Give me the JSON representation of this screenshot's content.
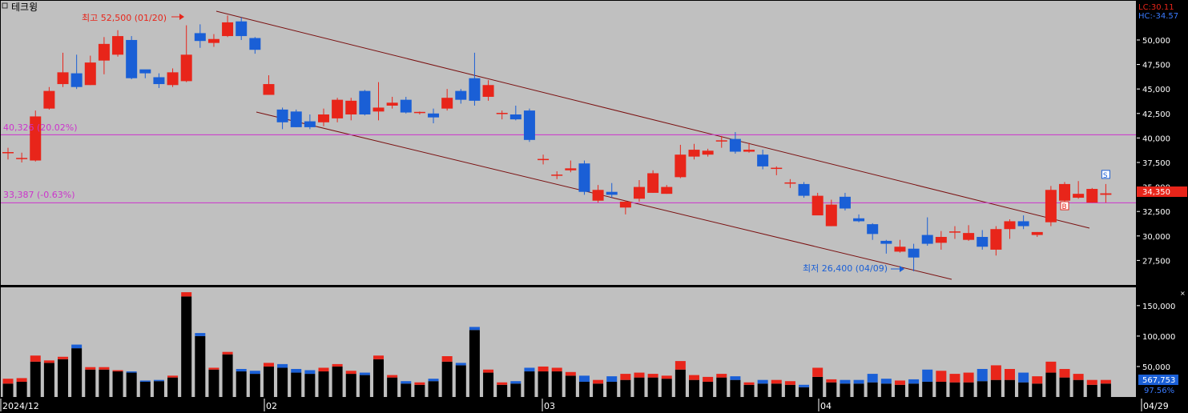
{
  "title": "테크윙",
  "last_close_label": "34,350",
  "hints": {
    "lc": "LC:30.11",
    "hc": "HC:-34.57"
  },
  "annotations": {
    "high": "최고 52,500 (01/20)",
    "low": "최저 26,400 (04/09)",
    "line_upper": "40,326 (20.02%)",
    "line_lower": "33,387 (-0.63%)",
    "buy_marker": "B",
    "sell_marker": "S"
  },
  "volume_value_label": "567,753",
  "volume_pct_label": "97.56%",
  "x_axis": {
    "labels": [
      "2024/12",
      "02",
      "03",
      "04",
      "04/29"
    ]
  },
  "colors": {
    "up": "#e8251a",
    "down": "#1a5fd6",
    "panel_bg": "#c0c0c0",
    "hline": "#cc33cc",
    "trend": "#7a1010"
  },
  "chart_data": [
    {
      "type": "candlestick",
      "title": "테크윙",
      "ylim": [
        25000,
        54000
      ],
      "y_ticks": [
        27500,
        30000,
        32500,
        35000,
        37500,
        40000,
        42500,
        45000,
        47500,
        50000
      ],
      "y_tick_labels": [
        "27,500",
        "30,000",
        "32,500",
        "35,000",
        "37,500",
        "40,000",
        "42,500",
        "45,000",
        "47,500",
        "50,000"
      ],
      "horizontal_lines": [
        40326,
        33387
      ],
      "candles": [
        [
          38500,
          38500,
          39000,
          37800
        ],
        [
          37900,
          37900,
          38500,
          37500
        ],
        [
          37700,
          42200,
          42800,
          37600
        ],
        [
          43000,
          44800,
          45200,
          42900
        ],
        [
          45500,
          46700,
          48700,
          45200
        ],
        [
          46600,
          45200,
          48500,
          45000
        ],
        [
          45400,
          47700,
          48400,
          45400
        ],
        [
          47900,
          49600,
          50300,
          46500
        ],
        [
          48500,
          50400,
          51000,
          48300
        ],
        [
          50000,
          46100,
          50400,
          46000
        ],
        [
          47000,
          46600,
          46800,
          46100
        ],
        [
          46200,
          45500,
          46600,
          45100
        ],
        [
          45400,
          46700,
          47100,
          45200
        ],
        [
          45800,
          48500,
          51500,
          45700
        ],
        [
          50700,
          49900,
          51600,
          49200
        ],
        [
          49700,
          50100,
          50600,
          49300
        ],
        [
          50400,
          51800,
          52500,
          50300
        ],
        [
          51900,
          50400,
          52300,
          50000
        ],
        [
          50200,
          49000,
          50300,
          48600
        ],
        [
          44400,
          45500,
          46400,
          44400
        ],
        [
          42900,
          41600,
          43100,
          40900
        ],
        [
          42700,
          41100,
          42900,
          41100
        ],
        [
          41700,
          41100,
          42400,
          40900
        ],
        [
          41600,
          42400,
          43000,
          41200
        ],
        [
          42000,
          43900,
          44100,
          41600
        ],
        [
          42400,
          43800,
          44100,
          41800
        ],
        [
          44800,
          42400,
          44900,
          42300
        ],
        [
          42700,
          43100,
          45700,
          41800
        ],
        [
          43300,
          43600,
          44200,
          43000
        ],
        [
          43900,
          42600,
          44200,
          42500
        ],
        [
          42600,
          42600,
          42700,
          42400
        ],
        [
          42500,
          42100,
          43000,
          41500
        ],
        [
          43000,
          44100,
          45000,
          42800
        ],
        [
          44800,
          43900,
          45000,
          43500
        ],
        [
          46100,
          43800,
          48700,
          43300
        ],
        [
          44200,
          45400,
          45900,
          43800
        ],
        [
          42500,
          42500,
          42800,
          41900
        ],
        [
          42400,
          41900,
          43300,
          41800
        ],
        [
          42800,
          39800,
          43000,
          39600
        ],
        [
          37800,
          37800,
          38300,
          37300
        ],
        [
          36200,
          36200,
          36600,
          35800
        ],
        [
          36700,
          36900,
          37700,
          36500
        ],
        [
          37400,
          34500,
          37700,
          34200
        ],
        [
          33600,
          34700,
          35200,
          33400
        ],
        [
          34500,
          34200,
          35400,
          33900
        ],
        [
          32900,
          33500,
          33600,
          32200
        ],
        [
          33800,
          35000,
          35700,
          33500
        ],
        [
          34400,
          36400,
          36700,
          34400
        ],
        [
          34300,
          35000,
          35200,
          34300
        ],
        [
          36000,
          38300,
          39300,
          35900
        ],
        [
          38100,
          38800,
          39400,
          37800
        ],
        [
          38300,
          38700,
          38900,
          38100
        ],
        [
          39600,
          39700,
          40200,
          39000
        ],
        [
          39900,
          38600,
          40600,
          38400
        ],
        [
          38600,
          38800,
          39500,
          38500
        ],
        [
          38300,
          37100,
          38800,
          36800
        ],
        [
          36900,
          36900,
          37100,
          36200
        ],
        [
          35400,
          35400,
          35800,
          34900
        ],
        [
          35300,
          34100,
          35500,
          33900
        ],
        [
          32100,
          34100,
          34400,
          32300
        ],
        [
          31000,
          33200,
          33700,
          31000
        ],
        [
          34000,
          32800,
          34400,
          32600
        ],
        [
          31800,
          31500,
          32200,
          31400
        ],
        [
          31200,
          30200,
          31300,
          29600
        ],
        [
          29500,
          29200,
          29600,
          28200
        ],
        [
          28400,
          28900,
          29600,
          28300
        ],
        [
          28700,
          27800,
          29200,
          26400
        ],
        [
          30100,
          29200,
          31900,
          29000
        ],
        [
          29300,
          29900,
          30500,
          28600
        ],
        [
          30400,
          30400,
          31000,
          29700
        ],
        [
          29600,
          30300,
          31100,
          29500
        ],
        [
          29900,
          28900,
          30600,
          28600
        ],
        [
          28600,
          30700,
          31000,
          28000
        ],
        [
          30700,
          31500,
          31700,
          29700
        ],
        [
          31500,
          31000,
          32100,
          30700
        ],
        [
          30100,
          30400,
          30400,
          29900
        ],
        [
          31400,
          34700,
          35100,
          31000
        ],
        [
          33600,
          35300,
          35500,
          33400
        ],
        [
          33900,
          34300,
          35600,
          33800
        ],
        [
          33400,
          34800,
          34900,
          33400
        ],
        [
          34200,
          34350,
          35300,
          33400
        ]
      ],
      "volume": {
        "ylim": [
          0,
          180000
        ],
        "y_ticks": [
          50000,
          100000,
          150000
        ],
        "y_tick_labels": [
          "50,000",
          "100,000",
          "150,000"
        ],
        "values": [
          22000,
          25000,
          58000,
          56000,
          62000,
          80000,
          45000,
          45000,
          42000,
          40000,
          25000,
          26000,
          32000,
          165000,
          100000,
          45000,
          70000,
          42000,
          38000,
          50000,
          48000,
          40000,
          38000,
          42000,
          50000,
          38000,
          36000,
          62000,
          32000,
          22000,
          20000,
          26000,
          58000,
          52000,
          110000,
          40000,
          20000,
          22000,
          42000,
          42000,
          42000,
          35000,
          25000,
          22000,
          25000,
          28000,
          32000,
          32000,
          30000,
          45000,
          28000,
          25000,
          32000,
          28000,
          20000,
          22000,
          22000,
          20000,
          16000,
          33000,
          24000,
          22000,
          22000,
          24000,
          22000,
          20000,
          22000,
          25000,
          25000,
          24000,
          24000,
          26000,
          28000,
          28000,
          24000,
          22000,
          40000,
          32000,
          28000,
          20000,
          22000
        ],
        "cap_values": [
          8000,
          6000,
          10000,
          4000,
          4000,
          6000,
          4000,
          4000,
          2000,
          2000,
          2000,
          2000,
          3000,
          7000,
          5000,
          3000,
          4000,
          4000,
          5000,
          6000,
          6000,
          6000,
          6000,
          6000,
          4000,
          5000,
          4000,
          6000,
          4000,
          4000,
          4000,
          4000,
          9000,
          4000,
          5000,
          5000,
          4000,
          4000,
          6000,
          8000,
          6000,
          6000,
          10000,
          6000,
          9000,
          10000,
          8000,
          6000,
          5000,
          14000,
          8000,
          8000,
          6000,
          6000,
          4000,
          6000,
          6000,
          6000,
          4000,
          15000,
          5000,
          6000,
          6000,
          14000,
          8000,
          7000,
          7000,
          20000,
          18000,
          14000,
          16000,
          20000,
          24000,
          18000,
          16000,
          12000,
          18000,
          14000,
          10000,
          8000,
          6000
        ]
      }
    }
  ]
}
